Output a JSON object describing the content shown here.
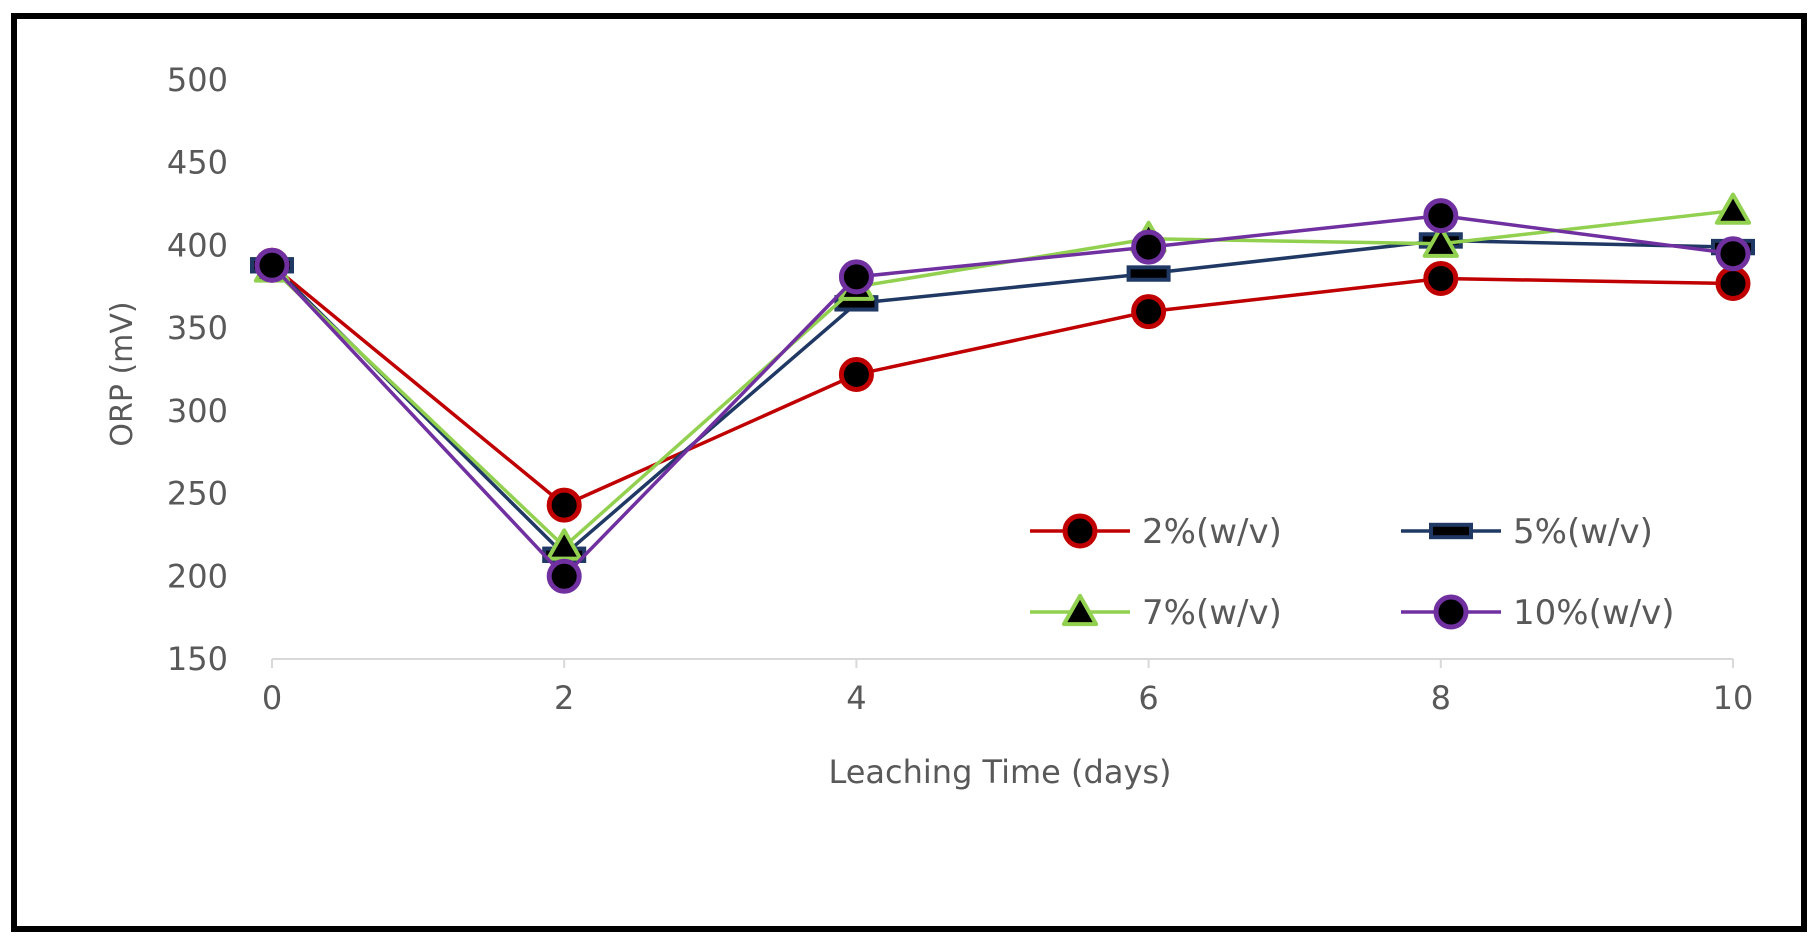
{
  "chart_data": {
    "type": "line",
    "title": "",
    "xlabel": "Leaching Time (days)",
    "ylabel": "ORP (mV)",
    "x": [
      0,
      2,
      4,
      6,
      8,
      10
    ],
    "xlim": [
      0,
      10
    ],
    "ylim": [
      150,
      500
    ],
    "xticks": [
      "0",
      "2",
      "4",
      "6",
      "8",
      "10"
    ],
    "yticks": [
      "150",
      "200",
      "250",
      "300",
      "350",
      "400",
      "450",
      "500"
    ],
    "grid": false,
    "legend_position": "bottom-right inside plot",
    "series": [
      {
        "name": "2%(w/v)",
        "color": "#c00000",
        "marker": "circle",
        "values": [
          388,
          243,
          322,
          360,
          380,
          377
        ]
      },
      {
        "name": "5%(w/v)",
        "color": "#1f3864",
        "marker": "square",
        "values": [
          388,
          213,
          365,
          383,
          403,
          399
        ]
      },
      {
        "name": "7%(w/v)",
        "color": "#92d050",
        "marker": "triangle",
        "values": [
          386,
          218,
          375,
          404,
          401,
          421
        ]
      },
      {
        "name": "10%(w/v)",
        "color": "#7030a0",
        "marker": "circle",
        "values": [
          388,
          200,
          381,
          399,
          418,
          395
        ]
      }
    ]
  }
}
